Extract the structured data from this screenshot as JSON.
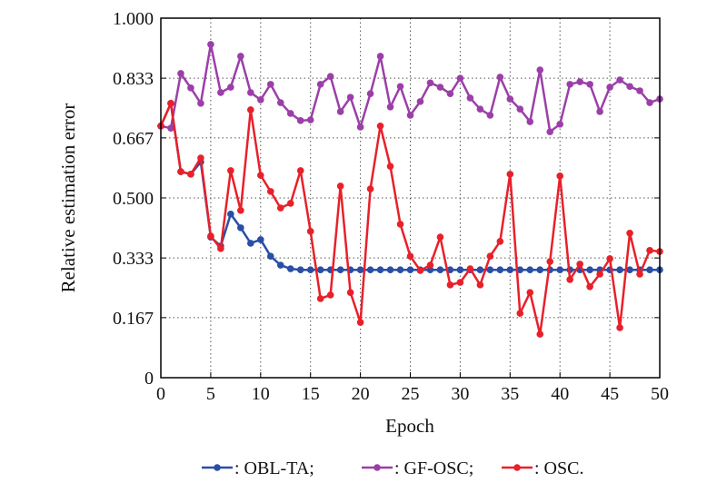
{
  "chart_data": {
    "type": "line",
    "title": "",
    "xlabel": "Epoch",
    "ylabel": "Relative estimation error",
    "xlim": [
      0,
      50
    ],
    "ylim": [
      0,
      1
    ],
    "grid": true,
    "legend_placement": "bottom",
    "x_ticks": [
      0,
      5,
      10,
      15,
      20,
      25,
      30,
      35,
      40,
      45,
      50
    ],
    "x_tick_labels": [
      "0",
      "5",
      "10",
      "15",
      "20",
      "25",
      "30",
      "35",
      "40",
      "45",
      "50"
    ],
    "y_ticks": [
      0,
      0.167,
      0.333,
      0.5,
      0.667,
      0.833,
      1.0
    ],
    "y_tick_labels": [
      "0",
      "0.167",
      "0.333",
      "0.500",
      "0.667",
      "0.833",
      "1.000"
    ],
    "x": [
      0,
      1,
      2,
      3,
      4,
      5,
      6,
      7,
      8,
      9,
      10,
      11,
      12,
      13,
      14,
      15,
      16,
      17,
      18,
      19,
      20,
      21,
      22,
      23,
      24,
      25,
      26,
      27,
      28,
      29,
      30,
      31,
      32,
      33,
      34,
      35,
      36,
      37,
      38,
      39,
      40,
      41,
      42,
      43,
      44,
      45,
      46,
      47,
      48,
      49,
      50
    ],
    "series": [
      {
        "name": ": OBL-TA;",
        "color": "#2a4ea6",
        "values": [
          0.7,
          0.763,
          0.573,
          0.566,
          0.6,
          0.391,
          0.366,
          0.455,
          0.417,
          0.374,
          0.384,
          0.338,
          0.313,
          0.303,
          0.3,
          0.3,
          0.3,
          0.3,
          0.3,
          0.3,
          0.3,
          0.3,
          0.3,
          0.3,
          0.3,
          0.3,
          0.3,
          0.3,
          0.3,
          0.3,
          0.3,
          0.3,
          0.3,
          0.3,
          0.3,
          0.3,
          0.3,
          0.3,
          0.3,
          0.3,
          0.3,
          0.3,
          0.3,
          0.3,
          0.3,
          0.3,
          0.3,
          0.3,
          0.3,
          0.3,
          0.3
        ]
      },
      {
        "name": ": GF-OSC;",
        "color": "#9b3fa8",
        "values": [
          0.7,
          0.694,
          0.846,
          0.806,
          0.763,
          0.927,
          0.793,
          0.808,
          0.894,
          0.793,
          0.773,
          0.816,
          0.765,
          0.735,
          0.715,
          0.717,
          0.816,
          0.838,
          0.74,
          0.78,
          0.697,
          0.79,
          0.894,
          0.753,
          0.81,
          0.73,
          0.768,
          0.82,
          0.808,
          0.79,
          0.833,
          0.778,
          0.747,
          0.73,
          0.836,
          0.775,
          0.747,
          0.712,
          0.856,
          0.684,
          0.705,
          0.816,
          0.823,
          0.816,
          0.74,
          0.808,
          0.828,
          0.81,
          0.798,
          0.765,
          0.775
        ]
      },
      {
        "name": ": OSC.",
        "color": "#e8202a",
        "values": [
          0.7,
          0.763,
          0.573,
          0.566,
          0.611,
          0.394,
          0.359,
          0.576,
          0.465,
          0.745,
          0.563,
          0.518,
          0.472,
          0.485,
          0.576,
          0.407,
          0.22,
          0.23,
          0.533,
          0.237,
          0.154,
          0.525,
          0.7,
          0.588,
          0.427,
          0.338,
          0.298,
          0.313,
          0.391,
          0.258,
          0.265,
          0.303,
          0.258,
          0.338,
          0.379,
          0.566,
          0.179,
          0.237,
          0.121,
          0.323,
          0.561,
          0.273,
          0.316,
          0.253,
          0.288,
          0.331,
          0.139,
          0.402,
          0.288,
          0.354,
          0.351
        ]
      }
    ]
  }
}
